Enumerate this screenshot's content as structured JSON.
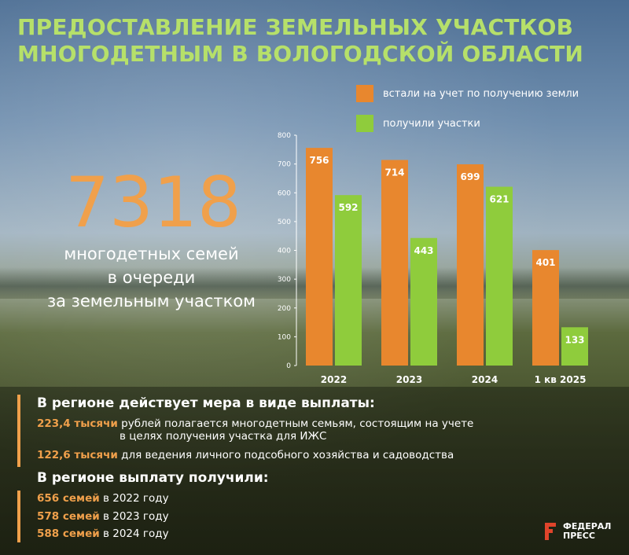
{
  "title": {
    "line1": "ПРЕДОСТАВЛЕНИЕ ЗЕМЕЛЬНЫХ УЧАСТКОВ",
    "line2": "МНОГОДЕТНЫМ В ВОЛОГОДСКОЙ ОБЛАСТИ"
  },
  "highlight": {
    "number": "7318",
    "caption_line1": "многодетных семей",
    "caption_line2": "в очереди",
    "caption_line3": "за земельным участком"
  },
  "colors": {
    "orange": "#e8872e",
    "green": "#8fcc3c",
    "title_green": "#b6e06a",
    "accent_orange": "#f0a04b"
  },
  "chart_data": {
    "type": "bar",
    "categories": [
      "2022",
      "2023",
      "2024",
      "1 кв 2025"
    ],
    "series": [
      {
        "name": "встали на учет по получению земли",
        "color": "#e8872e",
        "values": [
          756,
          714,
          699,
          401
        ]
      },
      {
        "name": "получили участки",
        "color": "#8fcc3c",
        "values": [
          592,
          443,
          621,
          133
        ]
      }
    ],
    "data_labels": [
      [
        "756",
        "592"
      ],
      [
        "714",
        "443"
      ],
      [
        "699",
        "621"
      ],
      [
        "401",
        "133"
      ]
    ],
    "ylim": [
      0,
      800
    ],
    "yticks": [
      0,
      100,
      200,
      300,
      400,
      500,
      600,
      700,
      800
    ],
    "legend_position": "top-right",
    "grid": false
  },
  "info": {
    "heading1": "В регионе действует мера в виде выплаты:",
    "row1": {
      "amount": "223,4 тысячи",
      "text_line1": " рублей полагается  многодетным семьям, состоящим на учете",
      "text_line2": "в целях получения участка для ИЖС"
    },
    "row2": {
      "amount": "122,6 тысячи",
      "text": " для ведения личного подсобного хозяйства и садоводства"
    },
    "heading2": "В регионе выплату получили:",
    "recipients": [
      {
        "count": "656 семей",
        "text": " в 2022 году"
      },
      {
        "count": "578 семей",
        "text": " в 2023 году"
      },
      {
        "count": "588 семей",
        "text": " в 2024 году"
      }
    ]
  },
  "logo": {
    "line1": "ФЕДЕРАЛ",
    "line2": "ПРЕСС",
    "icon": "federal-press-logo-icon"
  }
}
